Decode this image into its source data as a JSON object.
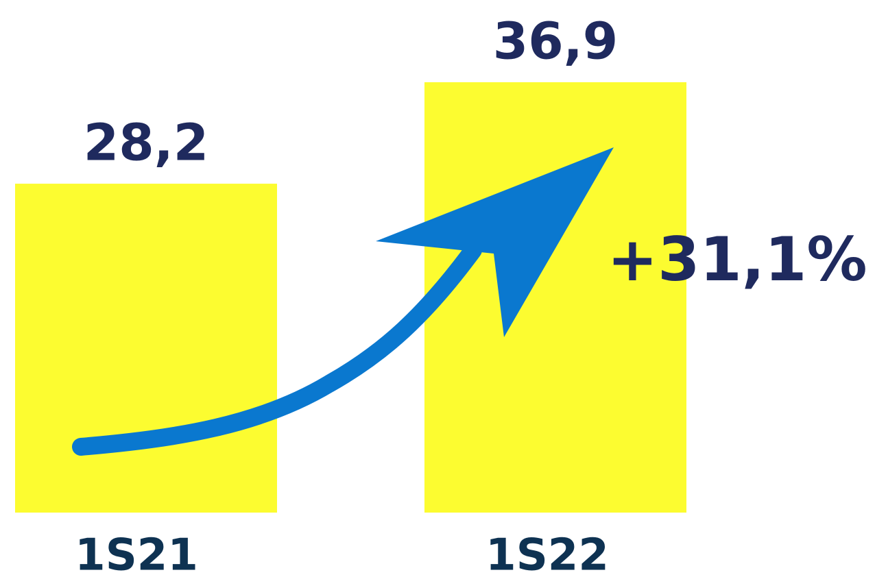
{
  "chart_data": {
    "type": "bar",
    "categories": [
      "1S21",
      "1S22"
    ],
    "values": [
      28.2,
      36.9
    ],
    "value_labels": [
      "28,2",
      "36,9"
    ],
    "color": "#fcfc30",
    "annotation": "+31,1%"
  }
}
